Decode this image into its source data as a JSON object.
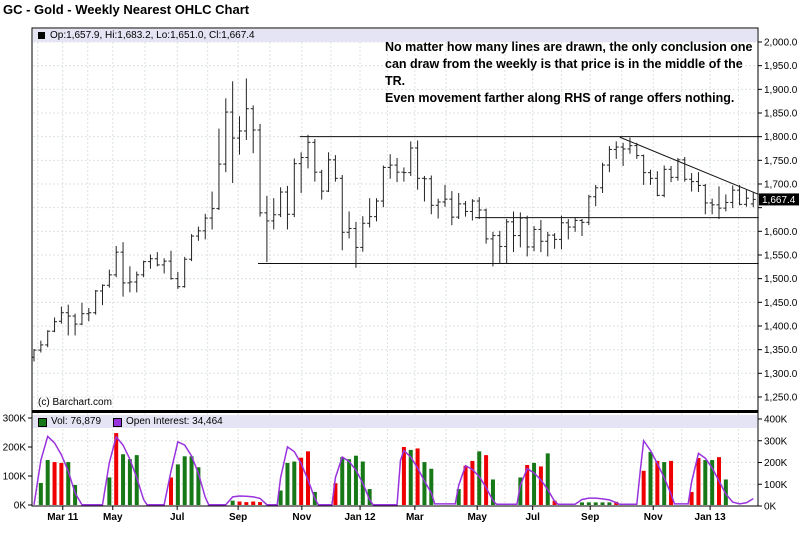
{
  "page": {
    "title": "GC - Gold - Weekly Nearest OHLC Chart"
  },
  "quote_bar": {
    "label": "Op:1,657.9, Hi:1,683.2, Lo:1,651.0, Cl:1,667.4"
  },
  "annotation": {
    "text": "No matter how many lines are drawn, the only conclusion one\ncan draw from the weekly is that price is in the middle of the TR.\nEven movement farther along RHS of range offers nothing."
  },
  "copyright": "(c) Barchart.com",
  "volume_legend": {
    "vol_label": "Vol: 76,879",
    "oi_label": "Open Interest: 34,464"
  },
  "last_price_label": "1,667.4",
  "colors": {
    "bar": "#222222",
    "vol_up": "#177817",
    "vol_down": "#ee0000",
    "open_interest": "#9933dd",
    "grid": "#dce3dc",
    "strip_bg": "#e4e4f4",
    "frame": "#000000",
    "tag_bg": "#000000",
    "tag_text": "#ffffff"
  },
  "chart_data": {
    "type": "ohlc+volume",
    "title": "GC - Gold - Weekly Nearest OHLC Chart",
    "price_axis": {
      "min": 1250,
      "max": 2000,
      "step": 50,
      "side": "right",
      "ticks": [
        {
          "v": 2000,
          "label": "2,000.0"
        },
        {
          "v": 1950,
          "label": "1,950.0"
        },
        {
          "v": 1900,
          "label": "1,900.0"
        },
        {
          "v": 1850,
          "label": "1,850.0"
        },
        {
          "v": 1800,
          "label": "1,800.0"
        },
        {
          "v": 1750,
          "label": "1,750.0"
        },
        {
          "v": 1700,
          "label": "1,700.0"
        },
        {
          "v": 1600,
          "label": "1,600.0"
        },
        {
          "v": 1550,
          "label": "1,550.0"
        },
        {
          "v": 1500,
          "label": "1,500.0"
        },
        {
          "v": 1450,
          "label": "1,450.0"
        },
        {
          "v": 1400,
          "label": "1,400.0"
        },
        {
          "v": 1350,
          "label": "1,350.0"
        },
        {
          "v": 1300,
          "label": "1,300.0"
        },
        {
          "v": 1250,
          "label": "1,250.0"
        }
      ]
    },
    "volume_axis_left": {
      "ticks": [
        {
          "v": 300,
          "label": "300K"
        },
        {
          "v": 200,
          "label": "200K"
        },
        {
          "v": 100,
          "label": "100K"
        },
        {
          "v": 0,
          "label": "0K"
        }
      ]
    },
    "oi_axis_right": {
      "ticks": [
        {
          "v": 400,
          "label": "400K"
        },
        {
          "v": 300,
          "label": "300K"
        },
        {
          "v": 200,
          "label": "200K"
        },
        {
          "v": 100,
          "label": "100K"
        },
        {
          "v": 0,
          "label": "0K"
        }
      ]
    },
    "date_ticks": [
      {
        "label": "Mar 11",
        "week": 4.2
      },
      {
        "label": "May",
        "week": 11.5
      },
      {
        "label": "Jul",
        "week": 20.9
      },
      {
        "label": "Sep",
        "week": 29.8
      },
      {
        "label": "Nov",
        "week": 39.1
      },
      {
        "label": "Jan 12",
        "week": 47.6
      },
      {
        "label": "Mar",
        "week": 55.6
      },
      {
        "label": "May",
        "week": 64.7
      },
      {
        "label": "Jul",
        "week": 72.8
      },
      {
        "label": "Sep",
        "week": 81.2
      },
      {
        "label": "Nov",
        "week": 90.4
      },
      {
        "label": "Jan 13",
        "week": 98.7
      }
    ],
    "last_close": 1667.4,
    "ohlc": [
      [
        1334,
        1351,
        1325,
        1349
      ],
      [
        1349,
        1369,
        1344,
        1360
      ],
      [
        1360,
        1391,
        1355,
        1389
      ],
      [
        1389,
        1418,
        1387,
        1409
      ],
      [
        1410,
        1441,
        1405,
        1428
      ],
      [
        1428,
        1445,
        1380,
        1421
      ],
      [
        1421,
        1426,
        1380,
        1404
      ],
      [
        1404,
        1449,
        1402,
        1426
      ],
      [
        1426,
        1438,
        1410,
        1428
      ],
      [
        1428,
        1476,
        1424,
        1474
      ],
      [
        1474,
        1488,
        1444,
        1486
      ],
      [
        1486,
        1519,
        1481,
        1508
      ],
      [
        1508,
        1569,
        1503,
        1556
      ],
      [
        1556,
        1577,
        1462,
        1491
      ],
      [
        1491,
        1526,
        1471,
        1493
      ],
      [
        1493,
        1515,
        1471,
        1508
      ],
      [
        1508,
        1538,
        1503,
        1536
      ],
      [
        1536,
        1551,
        1521,
        1542
      ],
      [
        1542,
        1556,
        1526,
        1529
      ],
      [
        1529,
        1543,
        1511,
        1537
      ],
      [
        1537,
        1559,
        1498,
        1500
      ],
      [
        1500,
        1514,
        1478,
        1483
      ],
      [
        1483,
        1546,
        1481,
        1541
      ],
      [
        1541,
        1594,
        1537,
        1590
      ],
      [
        1590,
        1610,
        1580,
        1601
      ],
      [
        1601,
        1637,
        1583,
        1628
      ],
      [
        1628,
        1684,
        1604,
        1648
      ],
      [
        1648,
        1817,
        1645,
        1742
      ],
      [
        1742,
        1881,
        1725,
        1852
      ],
      [
        1852,
        1917,
        1702,
        1797
      ],
      [
        1797,
        1843,
        1762,
        1812
      ],
      [
        1812,
        1923,
        1793,
        1859
      ],
      [
        1859,
        1866,
        1765,
        1814
      ],
      [
        1814,
        1827,
        1631,
        1639
      ],
      [
        1639,
        1675,
        1535,
        1622
      ],
      [
        1622,
        1670,
        1604,
        1635
      ],
      [
        1635,
        1693,
        1630,
        1683
      ],
      [
        1683,
        1696,
        1604,
        1636
      ],
      [
        1636,
        1754,
        1630,
        1743
      ],
      [
        1743,
        1767,
        1681,
        1756
      ],
      [
        1756,
        1804,
        1733,
        1788
      ],
      [
        1788,
        1795,
        1705,
        1725
      ],
      [
        1725,
        1730,
        1667,
        1685
      ],
      [
        1685,
        1767,
        1683,
        1751
      ],
      [
        1751,
        1761,
        1705,
        1712
      ],
      [
        1712,
        1719,
        1560,
        1598
      ],
      [
        1598,
        1642,
        1585,
        1606
      ],
      [
        1606,
        1620,
        1523,
        1566
      ],
      [
        1566,
        1632,
        1557,
        1617
      ],
      [
        1617,
        1670,
        1608,
        1631
      ],
      [
        1631,
        1670,
        1621,
        1664
      ],
      [
        1664,
        1739,
        1651,
        1735
      ],
      [
        1735,
        1763,
        1711,
        1740
      ],
      [
        1740,
        1755,
        1704,
        1725
      ],
      [
        1725,
        1735,
        1705,
        1724
      ],
      [
        1724,
        1790,
        1717,
        1776
      ],
      [
        1776,
        1792,
        1688,
        1712
      ],
      [
        1712,
        1717,
        1663,
        1711
      ],
      [
        1711,
        1718,
        1636,
        1655
      ],
      [
        1655,
        1669,
        1627,
        1662
      ],
      [
        1662,
        1698,
        1652,
        1668
      ],
      [
        1668,
        1685,
        1613,
        1630
      ],
      [
        1630,
        1681,
        1626,
        1658
      ],
      [
        1658,
        1664,
        1631,
        1642
      ],
      [
        1642,
        1668,
        1623,
        1664
      ],
      [
        1664,
        1672,
        1626,
        1645
      ],
      [
        1645,
        1648,
        1574,
        1584
      ],
      [
        1584,
        1599,
        1526,
        1591
      ],
      [
        1591,
        1601,
        1532,
        1568
      ],
      [
        1568,
        1626,
        1532,
        1620
      ],
      [
        1620,
        1642,
        1556,
        1591
      ],
      [
        1591,
        1640,
        1566,
        1628
      ],
      [
        1628,
        1633,
        1547,
        1567
      ],
      [
        1567,
        1611,
        1558,
        1604
      ],
      [
        1604,
        1624,
        1556,
        1579
      ],
      [
        1579,
        1599,
        1547,
        1592
      ],
      [
        1592,
        1596,
        1563,
        1583
      ],
      [
        1583,
        1633,
        1562,
        1618
      ],
      [
        1618,
        1626,
        1583,
        1609
      ],
      [
        1609,
        1630,
        1599,
        1623
      ],
      [
        1623,
        1626,
        1590,
        1619
      ],
      [
        1619,
        1677,
        1613,
        1673
      ],
      [
        1673,
        1698,
        1653,
        1692
      ],
      [
        1692,
        1745,
        1681,
        1740
      ],
      [
        1740,
        1780,
        1725,
        1773
      ],
      [
        1773,
        1790,
        1753,
        1778
      ],
      [
        1778,
        1787,
        1738,
        1774
      ],
      [
        1774,
        1798,
        1764,
        1781
      ],
      [
        1781,
        1787,
        1753,
        1760
      ],
      [
        1760,
        1762,
        1698,
        1724
      ],
      [
        1724,
        1730,
        1698,
        1712
      ],
      [
        1712,
        1727,
        1674,
        1676
      ],
      [
        1676,
        1739,
        1672,
        1731
      ],
      [
        1731,
        1738,
        1704,
        1714
      ],
      [
        1714,
        1755,
        1707,
        1751
      ],
      [
        1751,
        1757,
        1705,
        1710
      ],
      [
        1710,
        1723,
        1684,
        1705
      ],
      [
        1705,
        1725,
        1683,
        1697
      ],
      [
        1697,
        1700,
        1636,
        1660
      ],
      [
        1660,
        1669,
        1636,
        1656
      ],
      [
        1656,
        1695,
        1626,
        1649
      ],
      [
        1649,
        1678,
        1642,
        1661
      ],
      [
        1661,
        1697,
        1649,
        1687
      ],
      [
        1687,
        1698,
        1655,
        1657
      ],
      [
        1657,
        1688,
        1652,
        1670
      ],
      [
        1657.9,
        1683.2,
        1651,
        1667.4
      ]
    ],
    "volume_bars": [
      [
        1,
        76,
        "g"
      ],
      [
        2,
        155,
        "g"
      ],
      [
        3,
        148,
        "r"
      ],
      [
        4,
        145,
        "r"
      ],
      [
        5,
        148,
        "g"
      ],
      [
        6,
        69,
        "g"
      ],
      [
        11,
        95,
        "g"
      ],
      [
        12,
        248,
        "r"
      ],
      [
        13,
        175,
        "g"
      ],
      [
        14,
        158,
        "g"
      ],
      [
        15,
        172,
        "g"
      ],
      [
        20,
        95,
        "r"
      ],
      [
        21,
        140,
        "g"
      ],
      [
        22,
        168,
        "g"
      ],
      [
        23,
        168,
        "g"
      ],
      [
        24,
        130,
        "g"
      ],
      [
        29,
        15,
        "g"
      ],
      [
        30,
        12,
        "r"
      ],
      [
        31,
        10,
        "r"
      ],
      [
        32,
        12,
        "r"
      ],
      [
        33,
        10,
        "r"
      ],
      [
        36,
        50,
        "g"
      ],
      [
        37,
        145,
        "g"
      ],
      [
        38,
        150,
        "g"
      ],
      [
        39,
        163,
        "r"
      ],
      [
        40,
        185,
        "r"
      ],
      [
        41,
        45,
        "g"
      ],
      [
        44,
        75,
        "r"
      ],
      [
        45,
        165,
        "g"
      ],
      [
        46,
        158,
        "g"
      ],
      [
        47,
        170,
        "g"
      ],
      [
        48,
        150,
        "g"
      ],
      [
        49,
        55,
        "g"
      ],
      [
        54,
        200,
        "r"
      ],
      [
        55,
        190,
        "g"
      ],
      [
        56,
        195,
        "r"
      ],
      [
        57,
        148,
        "g"
      ],
      [
        58,
        125,
        "g"
      ],
      [
        62,
        55,
        "g"
      ],
      [
        63,
        135,
        "r"
      ],
      [
        64,
        152,
        "r"
      ],
      [
        65,
        185,
        "g"
      ],
      [
        66,
        172,
        "r"
      ],
      [
        67,
        88,
        "g"
      ],
      [
        71,
        95,
        "g"
      ],
      [
        72,
        138,
        "r"
      ],
      [
        73,
        145,
        "g"
      ],
      [
        74,
        133,
        "r"
      ],
      [
        75,
        178,
        "g"
      ],
      [
        76,
        15,
        "r"
      ],
      [
        80,
        9,
        "g"
      ],
      [
        81,
        9,
        "g"
      ],
      [
        82,
        9,
        "g"
      ],
      [
        83,
        9,
        "g"
      ],
      [
        84,
        9,
        "g"
      ],
      [
        85,
        11,
        "r"
      ],
      [
        89,
        118,
        "r"
      ],
      [
        90,
        183,
        "g"
      ],
      [
        91,
        152,
        "r"
      ],
      [
        92,
        148,
        "g"
      ],
      [
        93,
        152,
        "r"
      ],
      [
        96,
        45,
        "r"
      ],
      [
        97,
        162,
        "r"
      ],
      [
        98,
        155,
        "g"
      ],
      [
        99,
        155,
        "g"
      ],
      [
        100,
        165,
        "r"
      ],
      [
        101,
        88,
        "g"
      ]
    ],
    "open_interest_line": [
      [
        0,
        5
      ],
      [
        1,
        210
      ],
      [
        2,
        320
      ],
      [
        3,
        290
      ],
      [
        4,
        235
      ],
      [
        5,
        160
      ],
      [
        6,
        60
      ],
      [
        7,
        6
      ],
      [
        10,
        6
      ],
      [
        11,
        200
      ],
      [
        12,
        318
      ],
      [
        13,
        280
      ],
      [
        14,
        215
      ],
      [
        15,
        130
      ],
      [
        16,
        30
      ],
      [
        16.5,
        6
      ],
      [
        19,
        6
      ],
      [
        20,
        160
      ],
      [
        21,
        295
      ],
      [
        22,
        280
      ],
      [
        23,
        230
      ],
      [
        24,
        150
      ],
      [
        25,
        40
      ],
      [
        25.5,
        6
      ],
      [
        28,
        6
      ],
      [
        29,
        42
      ],
      [
        30,
        46
      ],
      [
        31,
        45
      ],
      [
        32,
        42
      ],
      [
        33,
        35
      ],
      [
        34,
        6
      ],
      [
        35.5,
        6
      ],
      [
        36,
        130
      ],
      [
        37,
        272
      ],
      [
        38,
        250
      ],
      [
        39,
        195
      ],
      [
        40,
        120
      ],
      [
        41,
        35
      ],
      [
        41.5,
        6
      ],
      [
        43.5,
        6
      ],
      [
        44,
        130
      ],
      [
        45,
        225
      ],
      [
        46,
        205
      ],
      [
        47,
        165
      ],
      [
        48,
        105
      ],
      [
        49,
        28
      ],
      [
        49.5,
        6
      ],
      [
        53,
        6
      ],
      [
        53.5,
        210
      ],
      [
        54,
        255
      ],
      [
        55,
        225
      ],
      [
        56,
        175
      ],
      [
        57,
        115
      ],
      [
        58,
        60
      ],
      [
        58.5,
        10
      ],
      [
        61.5,
        10
      ],
      [
        62,
        95
      ],
      [
        63,
        185
      ],
      [
        64,
        168
      ],
      [
        65,
        135
      ],
      [
        66,
        85
      ],
      [
        67,
        25
      ],
      [
        67.5,
        8
      ],
      [
        70.5,
        8
      ],
      [
        71,
        95
      ],
      [
        72,
        172
      ],
      [
        73,
        152
      ],
      [
        74,
        120
      ],
      [
        75,
        75
      ],
      [
        76,
        22
      ],
      [
        76.5,
        8
      ],
      [
        79,
        8
      ],
      [
        80,
        30
      ],
      [
        81,
        36
      ],
      [
        82,
        36
      ],
      [
        83,
        33
      ],
      [
        84,
        28
      ],
      [
        85,
        15
      ],
      [
        85.5,
        8
      ],
      [
        88,
        8
      ],
      [
        88.5,
        160
      ],
      [
        89,
        300
      ],
      [
        90,
        255
      ],
      [
        91,
        195
      ],
      [
        92,
        130
      ],
      [
        93,
        55
      ],
      [
        93.5,
        10
      ],
      [
        95.5,
        10
      ],
      [
        96,
        110
      ],
      [
        97,
        242
      ],
      [
        98,
        220
      ],
      [
        99,
        175
      ],
      [
        100,
        115
      ],
      [
        101,
        55
      ],
      [
        102,
        18
      ],
      [
        103,
        10
      ],
      [
        104,
        15
      ],
      [
        105,
        34
      ]
    ],
    "trendlines": [
      {
        "w1": 38.8,
        "p1": 1800,
        "w2": 105.8,
        "p2": 1800
      },
      {
        "w1": 32.7,
        "p1": 1532,
        "w2": 105.8,
        "p2": 1532
      },
      {
        "w1": 64.4,
        "p1": 1629,
        "w2": 105.8,
        "p2": 1629
      },
      {
        "w1": 85.5,
        "p1": 1799,
        "w2": 105.8,
        "p2": 1678
      }
    ]
  }
}
